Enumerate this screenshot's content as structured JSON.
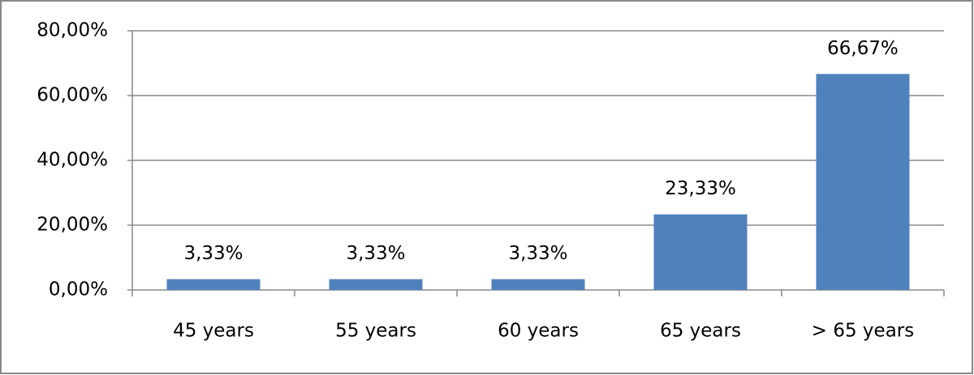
{
  "chart_data": {
    "type": "bar",
    "categories": [
      "45 years",
      "55 years",
      "60 years",
      "65 years",
      "> 65 years"
    ],
    "values": [
      3.33,
      3.33,
      3.33,
      23.33,
      66.67
    ],
    "value_labels": [
      "3,33%",
      "3,33%",
      "3,33%",
      "23,33%",
      "66,67%"
    ],
    "color": "#4f81bd",
    "ylim": [
      0,
      80
    ],
    "yticks": [
      {
        "value": 0,
        "label": "0,00%"
      },
      {
        "value": 20,
        "label": "20,00%"
      },
      {
        "value": 40,
        "label": "40,00%"
      },
      {
        "value": 60,
        "label": "60,00%"
      },
      {
        "value": 80,
        "label": "80,00%"
      }
    ],
    "grid": true
  }
}
